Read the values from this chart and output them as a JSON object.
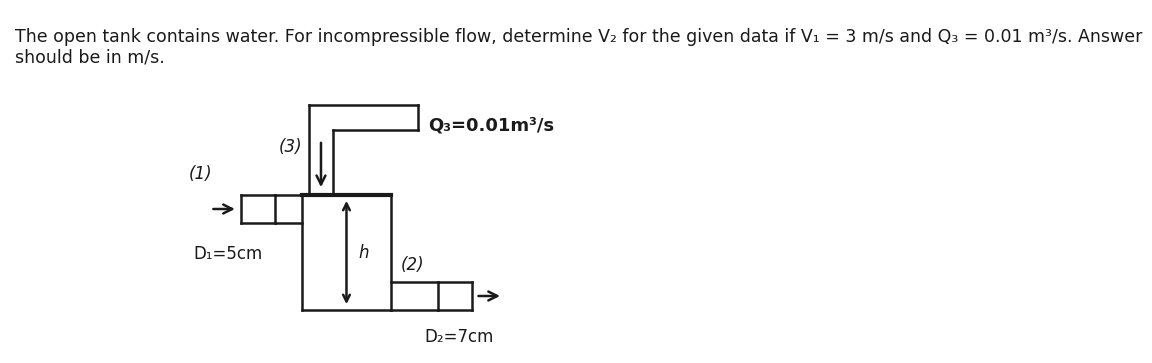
{
  "title_line1": "The open tank contains water. For incompressible flow, determine V₂ for the given data if V₁ = 3 m/s and Q₃ = 0.01 m³/s. Answer",
  "title_line2": "should be in m/s.",
  "label_1": "(1)",
  "label_2": "(2)",
  "label_3": "(3)",
  "label_Q3": "Q₃=0.01m³/s",
  "label_D1": "D₁=5cm",
  "label_D2": "D₂=7cm",
  "label_h": "h",
  "line_color": "#1a1a1a",
  "text_color": "#1a1a1a",
  "bg_color": "#ffffff",
  "lw": 1.8,
  "lw_thick": 3.0,
  "font_size_title": 12.5,
  "font_size_labels": 12,
  "fig_width": 10.35,
  "fig_height": 3.43
}
